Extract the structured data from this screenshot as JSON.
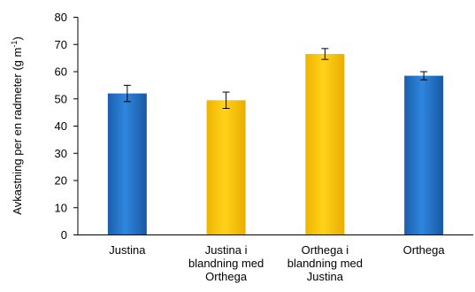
{
  "chart_data": {
    "type": "bar",
    "categories": [
      [
        "Justina"
      ],
      [
        "Justina i",
        "blandning med",
        "Orthega"
      ],
      [
        "Orthega i",
        "blandning med",
        "Justina"
      ],
      [
        "Orthega"
      ]
    ],
    "values": [
      52,
      49.5,
      66.5,
      58.5
    ],
    "errors": [
      3,
      3,
      2,
      1.5
    ],
    "bar_colors": [
      "#1F6FC5",
      "#F9C400",
      "#F9C400",
      "#1F6FC5"
    ],
    "ylabel": "Avkastning per en radmeter (g m",
    "ylabel_superscript": "-1",
    "ylabel_close": ")",
    "ylim": [
      0,
      80
    ],
    "yticks": [
      0,
      10,
      20,
      30,
      40,
      50,
      60,
      70,
      80
    ],
    "grid": false
  }
}
